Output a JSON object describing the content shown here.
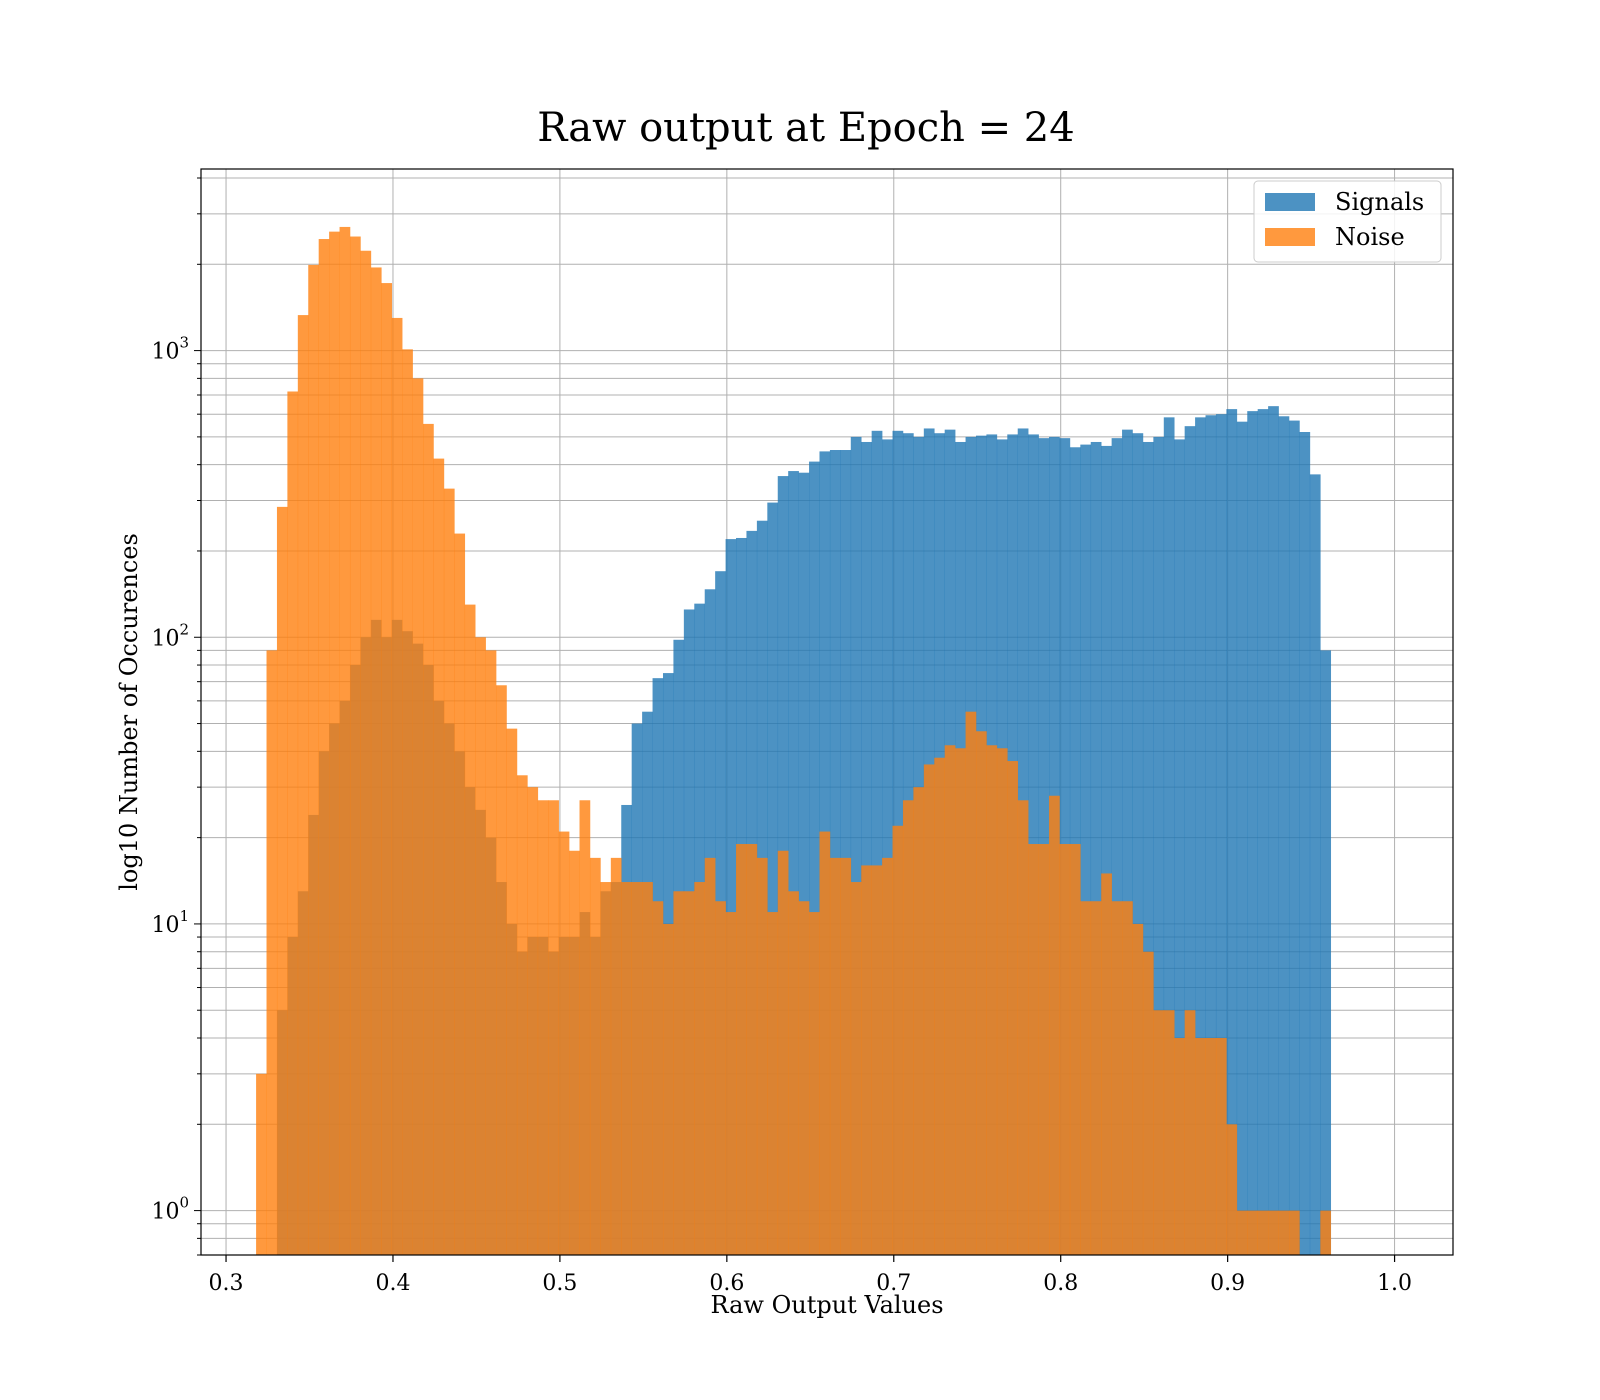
{
  "chart_data": {
    "type": "bar",
    "subtype": "histogram",
    "title": "Raw output at Epoch = 24",
    "xlabel": "Raw Output Values",
    "ylabel": "log10 Number of Occurences",
    "xlim": [
      0.285,
      1.035
    ],
    "ylim": [
      0.7,
      4300
    ],
    "yscale": "log",
    "grid": true,
    "legend": {
      "placement": "top-right",
      "entries": [
        "Signals",
        "Noise"
      ]
    },
    "x_ticks": [
      "0.3",
      "0.4",
      "0.5",
      "0.6",
      "0.7",
      "0.8",
      "0.9",
      "1.0"
    ],
    "x_tick_values": [
      0.3,
      0.4,
      0.5,
      0.6,
      0.7,
      0.8,
      0.9,
      1.0
    ],
    "y_ticks": [
      {
        "value": 1,
        "base": "10",
        "exp": "0"
      },
      {
        "value": 10,
        "base": "10",
        "exp": "1"
      },
      {
        "value": 100,
        "base": "10",
        "exp": "2"
      },
      {
        "value": 1000,
        "base": "10",
        "exp": "3"
      }
    ],
    "bin_start": 0.318,
    "bin_width": 0.00625,
    "series": [
      {
        "name": "Signals",
        "color": "#1f77b4",
        "alpha": 0.8,
        "values": [
          0,
          0,
          5,
          9,
          13,
          24,
          40,
          50,
          60,
          80,
          100,
          115,
          100,
          115,
          105,
          95,
          80,
          60,
          50,
          40,
          30,
          25,
          20,
          14,
          10,
          8,
          9,
          9,
          8,
          9,
          9,
          11,
          9,
          13,
          14,
          26,
          50,
          55,
          72,
          75,
          98,
          125,
          131,
          147,
          170,
          220,
          222,
          235,
          255,
          295,
          365,
          380,
          375,
          410,
          445,
          450,
          450,
          500,
          480,
          525,
          490,
          525,
          515,
          500,
          535,
          515,
          530,
          480,
          500,
          505,
          510,
          490,
          510,
          535,
          510,
          495,
          500,
          495,
          460,
          470,
          480,
          465,
          495,
          530,
          515,
          480,
          500,
          585,
          490,
          545,
          585,
          595,
          600,
          625,
          565,
          615,
          625,
          640,
          590,
          570,
          520,
          370,
          90
        ]
      },
      {
        "name": "Noise",
        "color": "#ff7f0e",
        "alpha": 0.8,
        "values": [
          3,
          90,
          285,
          720,
          1330,
          1990,
          2450,
          2600,
          2700,
          2500,
          2230,
          1950,
          1720,
          1300,
          1010,
          800,
          555,
          420,
          330,
          230,
          130,
          100,
          90,
          68,
          48,
          33,
          30,
          27,
          27,
          21,
          18,
          27,
          17,
          14,
          17,
          14,
          14,
          14,
          12,
          10,
          13,
          13,
          14,
          17,
          12,
          11,
          19,
          19,
          17,
          11,
          18,
          13,
          12,
          11,
          21,
          17,
          17,
          14,
          16,
          16,
          17,
          22,
          27,
          30,
          36,
          38,
          42,
          41,
          55,
          47,
          42,
          41,
          37,
          27,
          19,
          19,
          28,
          19,
          19,
          12,
          12,
          15,
          12,
          12,
          10,
          8,
          5,
          5,
          4,
          5,
          4,
          4,
          4,
          2,
          1,
          1,
          1,
          1,
          1,
          1,
          0,
          0,
          1
        ]
      }
    ]
  }
}
